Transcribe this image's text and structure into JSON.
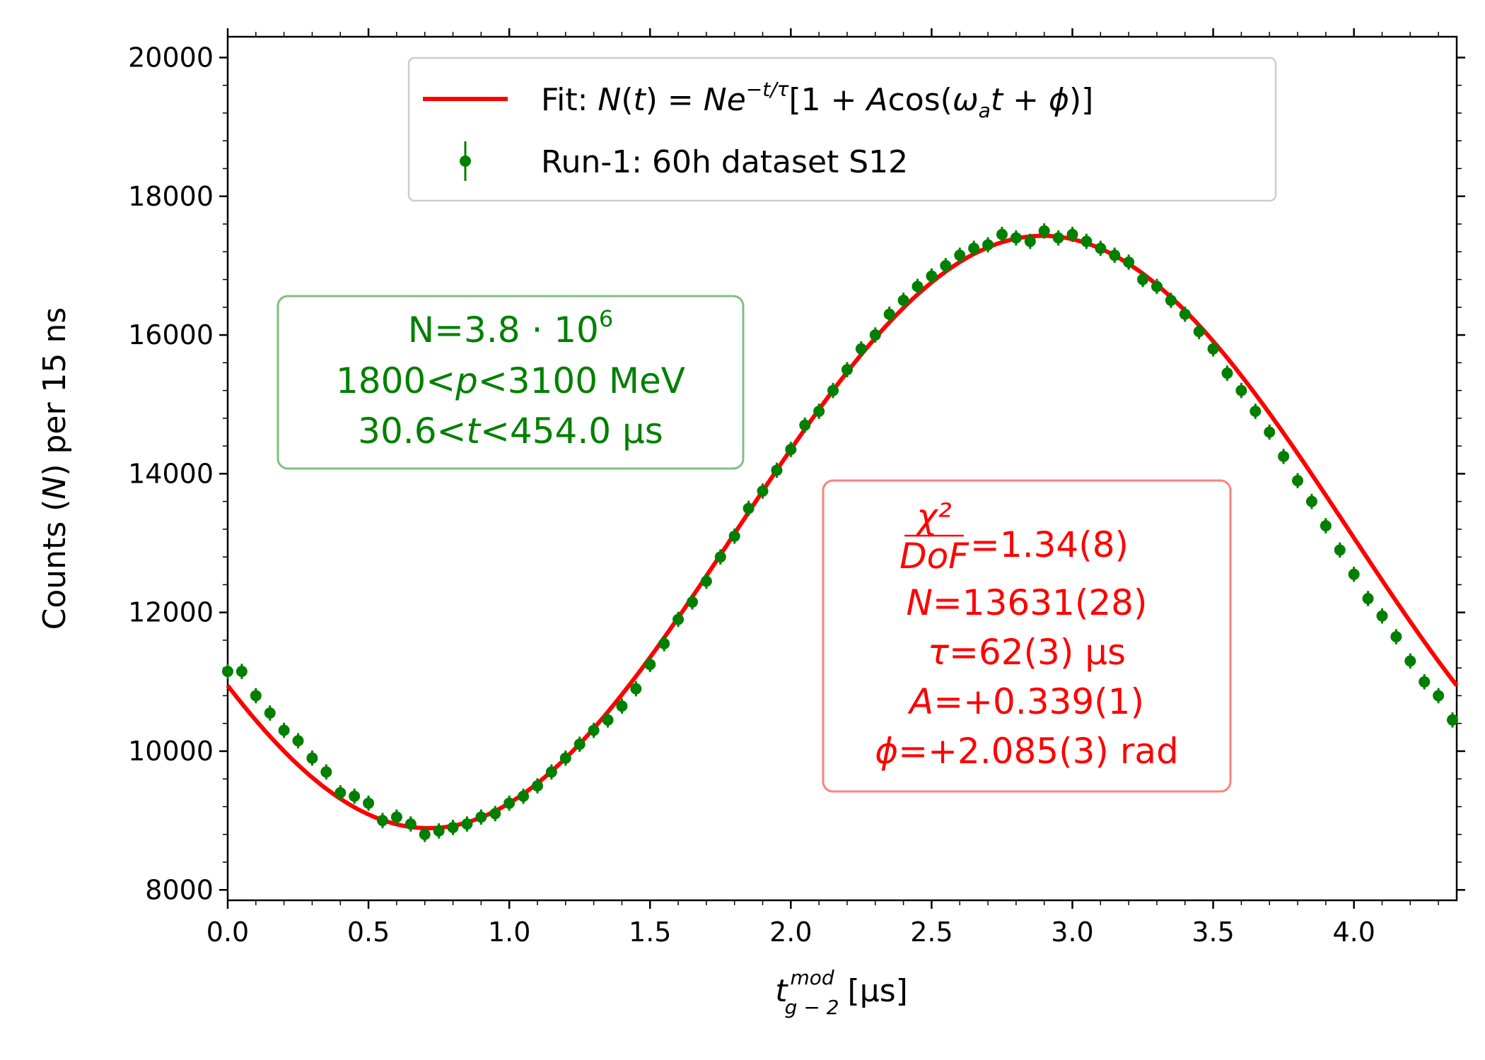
{
  "chart_data": {
    "type": "scatter",
    "xlabel": "t",
    "xlabel_sub": "g − 2",
    "xlabel_sup": "mod",
    "xlabel_unit": "[μs]",
    "ylabel_pre": "Counts (",
    "ylabel_var": "N",
    "ylabel_post": ") per 15 ns",
    "xlim": [
      0.0,
      4.365
    ],
    "ylim": [
      7850,
      20300
    ],
    "xticks": [
      "0.0",
      "0.5",
      "1.0",
      "1.5",
      "2.0",
      "2.5",
      "3.0",
      "3.5",
      "4.0"
    ],
    "yticks": [
      "8000",
      "10000",
      "12000",
      "14000",
      "16000",
      "18000",
      "20000"
    ],
    "grid": false,
    "legend_position": "top-center",
    "series": [
      {
        "kind": "fit-line",
        "name": "Fit: N(t) = Ne^{−t/τ}[1 + Acos(ω_a t + φ)]",
        "color": "#ff0000",
        "model": {
          "offset": 13160,
          "amplitude": 4270,
          "period_us": 4.365,
          "peak_us": 2.895
        }
      },
      {
        "kind": "data-errorbar",
        "name": "Run-1: 60h dataset S12",
        "color": "#007f00",
        "error_bar": 110,
        "x": [
          0.0,
          0.05,
          0.1,
          0.15,
          0.2,
          0.25,
          0.3,
          0.35,
          0.4,
          0.45,
          0.5,
          0.55,
          0.6,
          0.65,
          0.7,
          0.75,
          0.8,
          0.85,
          0.9,
          0.95,
          1.0,
          1.05,
          1.1,
          1.15,
          1.2,
          1.25,
          1.3,
          1.35,
          1.4,
          1.45,
          1.5,
          1.55,
          1.6,
          1.65,
          1.7,
          1.75,
          1.8,
          1.85,
          1.9,
          1.95,
          2.0,
          2.05,
          2.1,
          2.15,
          2.2,
          2.25,
          2.3,
          2.35,
          2.4,
          2.45,
          2.5,
          2.55,
          2.6,
          2.65,
          2.7,
          2.75,
          2.8,
          2.85,
          2.9,
          2.95,
          3.0,
          3.05,
          3.1,
          3.15,
          3.2,
          3.25,
          3.3,
          3.35,
          3.4,
          3.45,
          3.5,
          3.55,
          3.6,
          3.65,
          3.7,
          3.75,
          3.8,
          3.85,
          3.9,
          3.95,
          4.0,
          4.05,
          4.1,
          4.15,
          4.2,
          4.25,
          4.3,
          4.35
        ],
        "y": [
          11150,
          11150,
          10800,
          10550,
          10300,
          10150,
          9900,
          9700,
          9400,
          9350,
          9250,
          9000,
          9050,
          8950,
          8800,
          8850,
          8900,
          8950,
          9050,
          9100,
          9250,
          9350,
          9500,
          9700,
          9900,
          10100,
          10300,
          10450,
          10650,
          10900,
          11250,
          11550,
          11900,
          12150,
          12450,
          12800,
          13100,
          13500,
          13750,
          14050,
          14350,
          14700,
          14900,
          15200,
          15500,
          15800,
          16000,
          16300,
          16500,
          16700,
          16850,
          17000,
          17150,
          17250,
          17300,
          17450,
          17400,
          17350,
          17500,
          17400,
          17450,
          17350,
          17250,
          17150,
          17050,
          16800,
          16700,
          16500,
          16300,
          16050,
          15800,
          15450,
          15200,
          14900,
          14600,
          14250,
          13900,
          13600,
          13250,
          12900,
          12550,
          12200,
          11950,
          11650,
          11300,
          11000,
          10800,
          10450
        ]
      }
    ],
    "legend": {
      "fit_prefix": "Fit: ",
      "fit_formula_a": "N",
      "fit_formula_b": "(",
      "fit_formula_c": "t",
      "fit_formula_d": ") = ",
      "fit_formula_e": "Ne",
      "fit_formula_sup": "−t/τ",
      "fit_formula_f": "[1 + ",
      "fit_formula_g": "A",
      "fit_formula_h": "cos(",
      "fit_formula_i": "ω",
      "fit_formula_isub": "a",
      "fit_formula_j": "t",
      "fit_formula_k": " + ",
      "fit_formula_l": "ϕ",
      "fit_formula_m": ")]",
      "data_label": "Run-1: 60h dataset S12"
    },
    "annotations": {
      "green_box": {
        "line1_pre": "N=3.8 · 10",
        "line1_sup": "6",
        "line2_a": "1800<",
        "line2_var": "p",
        "line2_b": "<3100 MeV",
        "line3_a": "30.6<",
        "line3_var": "t",
        "line3_b": "<454.0 μs"
      },
      "red_box": {
        "chi_num": "χ²",
        "chi_den": "DoF",
        "chi_val": "=1.34(8)",
        "n_var": "N",
        "n_val": "=13631(28)",
        "tau_var": "τ",
        "tau_val": "=62(3) μs",
        "a_var": "A",
        "a_val": "=+0.339(1)",
        "phi_var": "ϕ",
        "phi_val": "=+2.085(3) rad"
      }
    }
  }
}
